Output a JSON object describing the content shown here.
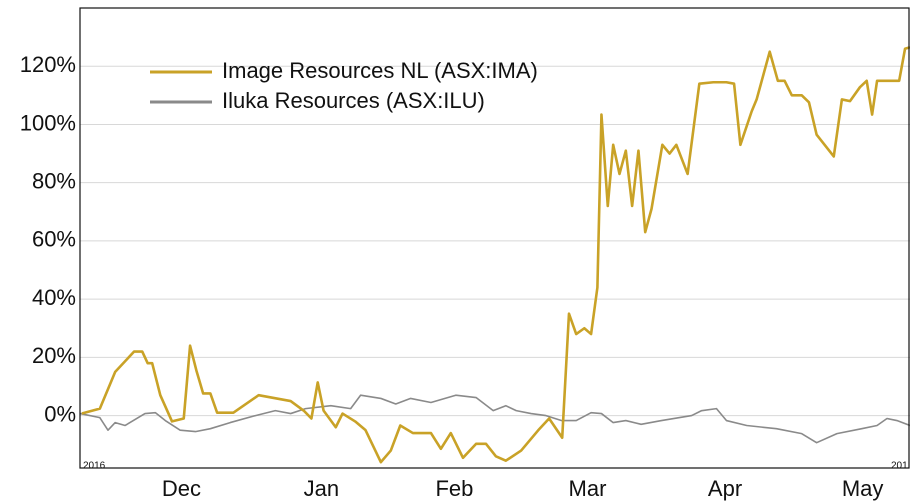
{
  "chart_data": {
    "type": "line",
    "series": [
      {
        "name": "Image Resources NL (ASX:IMA)",
        "color": "#c9a227",
        "x": [
          0.4,
          4.4,
          7.8,
          12,
          13.8,
          15,
          16,
          17.8,
          20.4,
          23,
          24.4,
          25.8,
          27.3,
          28.9,
          30.4,
          34,
          39.6,
          46.7,
          49.6,
          51.3,
          52.7,
          54,
          56.7,
          58.2,
          61,
          63.3,
          66.7,
          68.9,
          71,
          73.8,
          77.8,
          80,
          82.2,
          84.9,
          87.8,
          90,
          92.2,
          94.4,
          97.8,
          101.6,
          104,
          106.9,
          108.4,
          110,
          111.8,
          113.3,
          114.7,
          115.6,
          117,
          118.2,
          119.6,
          121,
          122.4,
          123.8,
          125.3,
          126.7,
          129.1,
          130.7,
          132.2,
          134.7,
          137.3,
          140.4,
          143.3,
          145,
          146.4,
          148.9,
          150,
          152.9,
          154.7,
          156.2,
          157.8,
          160,
          161.6,
          163.3,
          167.1,
          168.9,
          170.7,
          172.9,
          174.4,
          175.6,
          176.7,
          181.6,
          182.9,
          184
        ],
        "values": [
          0.7,
          2.4,
          15,
          22,
          22,
          18,
          18,
          7,
          -2,
          -1,
          24,
          15.5,
          7.6,
          7.6,
          1,
          1,
          7,
          5,
          1.7,
          -1,
          11.4,
          1.7,
          -4,
          0.7,
          -2,
          -5,
          -16,
          -12,
          -3.4,
          -6,
          -6,
          -11.4,
          -6,
          -14.5,
          -9.7,
          -9.7,
          -14,
          -15.5,
          -12,
          -5,
          -1,
          -7.6,
          35,
          28,
          30,
          28,
          44,
          103.4,
          72,
          93,
          83,
          91,
          72,
          91,
          63,
          71,
          93,
          90,
          93,
          83,
          114,
          114.5,
          114.5,
          114,
          93,
          104.5,
          108.6,
          125,
          115,
          115,
          110,
          110,
          107.6,
          96.5,
          89,
          108.6,
          108,
          112.8,
          115,
          103.4,
          115,
          115,
          126,
          126.5
        ]
      },
      {
        "name": "Iluka Resources (ASX:ILU)",
        "color": "#8a8a8a",
        "x": [
          0,
          4.4,
          6.2,
          7.8,
          10,
          14.4,
          16.7,
          18.9,
          22.2,
          25.6,
          28.9,
          33.3,
          38.9,
          43.3,
          46.7,
          50,
          55.6,
          60,
          62.2,
          66.7,
          70,
          73.3,
          77.8,
          83.3,
          87.8,
          91.6,
          94.4,
          96.7,
          100,
          103.3,
          106.7,
          110,
          113.3,
          115.6,
          118.2,
          121,
          124.4,
          128.9,
          135.6,
          137.8,
          141.1,
          143.3,
          147.8,
          154.4,
          160,
          163.3,
          167.8,
          173.3,
          176.7,
          178.9,
          181.1,
          184
        ],
        "values": [
          0.7,
          -0.7,
          -5,
          -2.4,
          -3.4,
          0.7,
          1,
          -1.7,
          -5,
          -5.5,
          -4.5,
          -2.4,
          0,
          1.7,
          0.7,
          2.4,
          3.4,
          2.4,
          7,
          5.9,
          4,
          5.9,
          4.5,
          7,
          6.2,
          1.7,
          3.4,
          1.7,
          0.7,
          0,
          -1.7,
          -1.7,
          1,
          0.7,
          -2.4,
          -1.7,
          -3,
          -1.7,
          0,
          1.7,
          2.4,
          -1.7,
          -3.4,
          -4.5,
          -6.2,
          -9.3,
          -6.2,
          -4.5,
          -3.4,
          -1,
          -1.7,
          -3.4
        ]
      }
    ],
    "xlim": [
      0,
      184
    ],
    "xticks": [
      {
        "value": 22.5,
        "label": "Dec"
      },
      {
        "value": 53.5,
        "label": "Jan"
      },
      {
        "value": 83,
        "label": "Feb"
      },
      {
        "value": 112.5,
        "label": "Mar"
      },
      {
        "value": 143,
        "label": "Apr"
      },
      {
        "value": 173.5,
        "label": "May"
      }
    ],
    "ylim": [
      -18,
      140
    ],
    "yticks": [
      {
        "value": 0,
        "label": "0%"
      },
      {
        "value": 20,
        "label": "20%"
      },
      {
        "value": 40,
        "label": "40%"
      },
      {
        "value": 60,
        "label": "60%"
      },
      {
        "value": 80,
        "label": "80%"
      },
      {
        "value": 100,
        "label": "100%"
      },
      {
        "value": 120,
        "label": "120%"
      }
    ],
    "annotations": [
      "2016",
      "201"
    ],
    "grid": true,
    "legend": "upper left"
  }
}
